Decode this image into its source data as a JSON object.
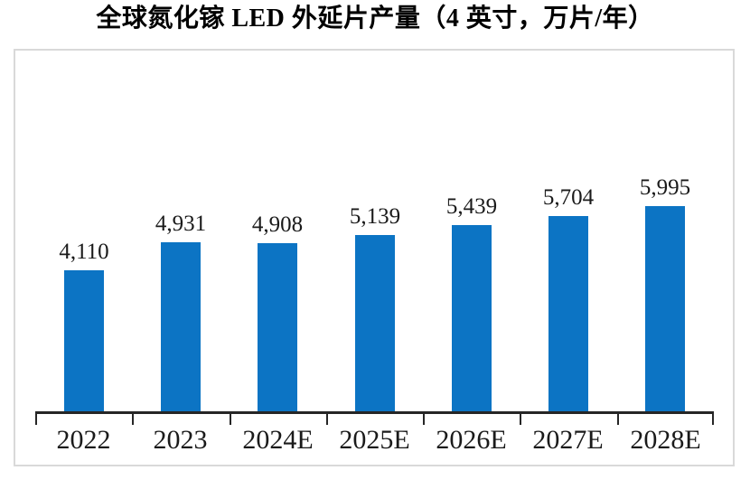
{
  "title": "全球氮化镓 LED 外延片产量（4 英寸，万片/年）",
  "colors": {
    "bar": "#0C74C4",
    "frame_border": "#D9D9D9",
    "axis": "#262626",
    "label_text": "#1A1A1A",
    "title_text": "#000000"
  },
  "chart_data": {
    "type": "bar",
    "title": "全球氮化镓 LED 外延片产量（4 英寸，万片/年）",
    "categories": [
      "2022",
      "2023",
      "2024E",
      "2025E",
      "2026E",
      "2027E",
      "2028E"
    ],
    "values": [
      4110,
      4931,
      4908,
      5139,
      5439,
      5704,
      5995
    ],
    "value_labels": [
      "4,110",
      "4,931",
      "4,908",
      "5,139",
      "5,439",
      "5,704",
      "5,995"
    ],
    "xlabel": "",
    "ylabel": "",
    "ylim": [
      0,
      10500
    ],
    "grid": false,
    "legend": "none",
    "value_labels_position": "above-bars"
  }
}
